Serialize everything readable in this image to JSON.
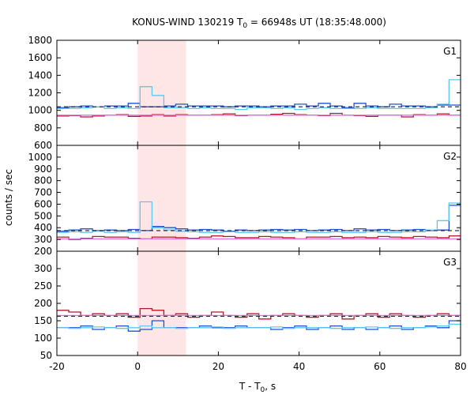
{
  "chart_data": {
    "type": "line",
    "title_main": "KONUS-WIND 130219 T",
    "title_sub": "0",
    "title_rest": " = 66948s UT (18:35:48.000)",
    "xlabel_main": "T - T",
    "xlabel_sub": "0",
    "xlabel_rest": ", s",
    "ylabel": "counts / sec",
    "xlim": [
      -20,
      80
    ],
    "x_ticks": [
      "-20",
      "0",
      "20",
      "40",
      "60",
      "80"
    ],
    "x_tick_values": [
      -20,
      0,
      20,
      40,
      60,
      80
    ],
    "highlight_interval": [
      0,
      12
    ],
    "panels": [
      {
        "label": "G1",
        "ylim": [
          600,
          1800
        ],
        "y_ticks": [
          "600",
          "800",
          "1000",
          "1200",
          "1400",
          "1600",
          "1800"
        ],
        "y_tick_values": [
          600,
          800,
          1000,
          1200,
          1400,
          1600,
          1800
        ],
        "background_level": 1040,
        "series": [
          {
            "color": "#2050d0",
            "bin_width": 2.944,
            "start": -20,
            "values": [
              1030,
              1040,
              1050,
              1040,
              1050,
              1050,
              1080,
              1040,
              1040,
              1050,
              1070,
              1050,
              1050,
              1050,
              1040,
              1050,
              1050,
              1040,
              1050,
              1050,
              1070,
              1050,
              1080,
              1050,
              1030,
              1080,
              1050,
              1040,
              1070,
              1050,
              1050,
              1040,
              1060,
              1060,
              1070
            ]
          },
          {
            "color": "#5ac8f0",
            "bin_width": 2.944,
            "start": -20,
            "values": [
              1020,
              1020,
              1030,
              1040,
              1020,
              1030,
              1020,
              1270,
              1170,
              1030,
              1030,
              1020,
              1030,
              1020,
              1020,
              1010,
              1030,
              1030,
              1020,
              1030,
              1010,
              1020,
              1030,
              1020,
              1020,
              1020,
              1030,
              1020,
              1020,
              1020,
              1020,
              1030,
              1070,
              1350,
              1350
            ]
          },
          {
            "color": "#b01828",
            "bin_width": 2.944,
            "start": -20,
            "values": [
              935,
              940,
              925,
              935,
              945,
              950,
              930,
              935,
              950,
              935,
              950,
              945,
              945,
              950,
              960,
              940,
              945,
              945,
              955,
              965,
              950,
              945,
              940,
              965,
              945,
              940,
              930,
              945,
              945,
              925,
              950,
              945,
              960,
              945,
              960
            ]
          },
          {
            "color": "#e070e0",
            "bin_width": 100,
            "start": -20,
            "values": [
              945
            ]
          }
        ]
      },
      {
        "label": "G2",
        "ylim": [
          200,
          1100
        ],
        "y_ticks": [
          "200",
          "300",
          "400",
          "500",
          "600",
          "700",
          "800",
          "900",
          "1000"
        ],
        "y_tick_values": [
          200,
          300,
          400,
          500,
          600,
          700,
          800,
          900,
          1000
        ],
        "background_level": 375,
        "series": [
          {
            "color": "#2050d0",
            "bin_width": 2.944,
            "start": -20,
            "values": [
              370,
              380,
              390,
              375,
              380,
              375,
              385,
              375,
              410,
              400,
              390,
              380,
              385,
              380,
              370,
              380,
              375,
              380,
              385,
              380,
              385,
              375,
              380,
              385,
              375,
              390,
              380,
              385,
              375,
              380,
              385,
              375,
              380,
              590,
              590
            ]
          },
          {
            "color": "#5ac8f0",
            "bin_width": 2.944,
            "start": -20,
            "values": [
              360,
              365,
              360,
              370,
              360,
              365,
              360,
              620,
              400,
              380,
              370,
              365,
              360,
              360,
              365,
              360,
              360,
              365,
              360,
              360,
              365,
              360,
              360,
              365,
              360,
              360,
              365,
              360,
              360,
              365,
              365,
              380,
              460,
              610,
              600
            ]
          },
          {
            "color": "#b01828",
            "bin_width": 2.944,
            "start": -20,
            "values": [
              320,
              300,
              310,
              325,
              320,
              320,
              310,
              305,
              320,
              320,
              315,
              310,
              320,
              330,
              325,
              315,
              315,
              325,
              320,
              315,
              305,
              320,
              320,
              325,
              315,
              320,
              315,
              325,
              320,
              315,
              325,
              320,
              315,
              330,
              330
            ]
          },
          {
            "color": "#e070e0",
            "bin_width": 100,
            "start": -20,
            "values": [
              305
            ]
          }
        ]
      },
      {
        "label": "G3",
        "ylim": [
          50,
          350
        ],
        "y_ticks": [
          "50",
          "100",
          "150",
          "200",
          "250",
          "300"
        ],
        "y_tick_values": [
          50,
          100,
          150,
          200,
          250,
          300
        ],
        "background_level": 163,
        "series": [
          {
            "color": "#2050d0",
            "bin_width": 2.944,
            "start": -20,
            "values": [
              130,
              130,
              135,
              125,
              130,
              135,
              120,
              125,
              150,
              130,
              130,
              130,
              135,
              130,
              130,
              135,
              130,
              130,
              125,
              130,
              135,
              125,
              130,
              135,
              125,
              130,
              125,
              130,
              135,
              125,
              130,
              135,
              130,
              150,
              160
            ]
          },
          {
            "color": "#5ac8f0",
            "bin_width": 2.944,
            "start": -20,
            "values": [
              130,
              128,
              130,
              132,
              130,
              128,
              130,
              135,
              130,
              130,
              128,
              130,
              130,
              132,
              128,
              130,
              130,
              130,
              132,
              128,
              130,
              130,
              130,
              128,
              130,
              130,
              132,
              130,
              128,
              130,
              130,
              132,
              135,
              140,
              140
            ]
          },
          {
            "color": "#b01828",
            "bin_width": 2.944,
            "start": -20,
            "values": [
              180,
              175,
              165,
              170,
              165,
              170,
              160,
              185,
              180,
              165,
              170,
              160,
              165,
              175,
              165,
              160,
              170,
              155,
              165,
              170,
              165,
              160,
              165,
              170,
              155,
              165,
              170,
              160,
              170,
              165,
              160,
              165,
              170,
              165,
              175
            ]
          },
          {
            "color": "#e070e0",
            "bin_width": 100,
            "start": -20,
            "values": [
              165
            ]
          }
        ]
      }
    ]
  }
}
